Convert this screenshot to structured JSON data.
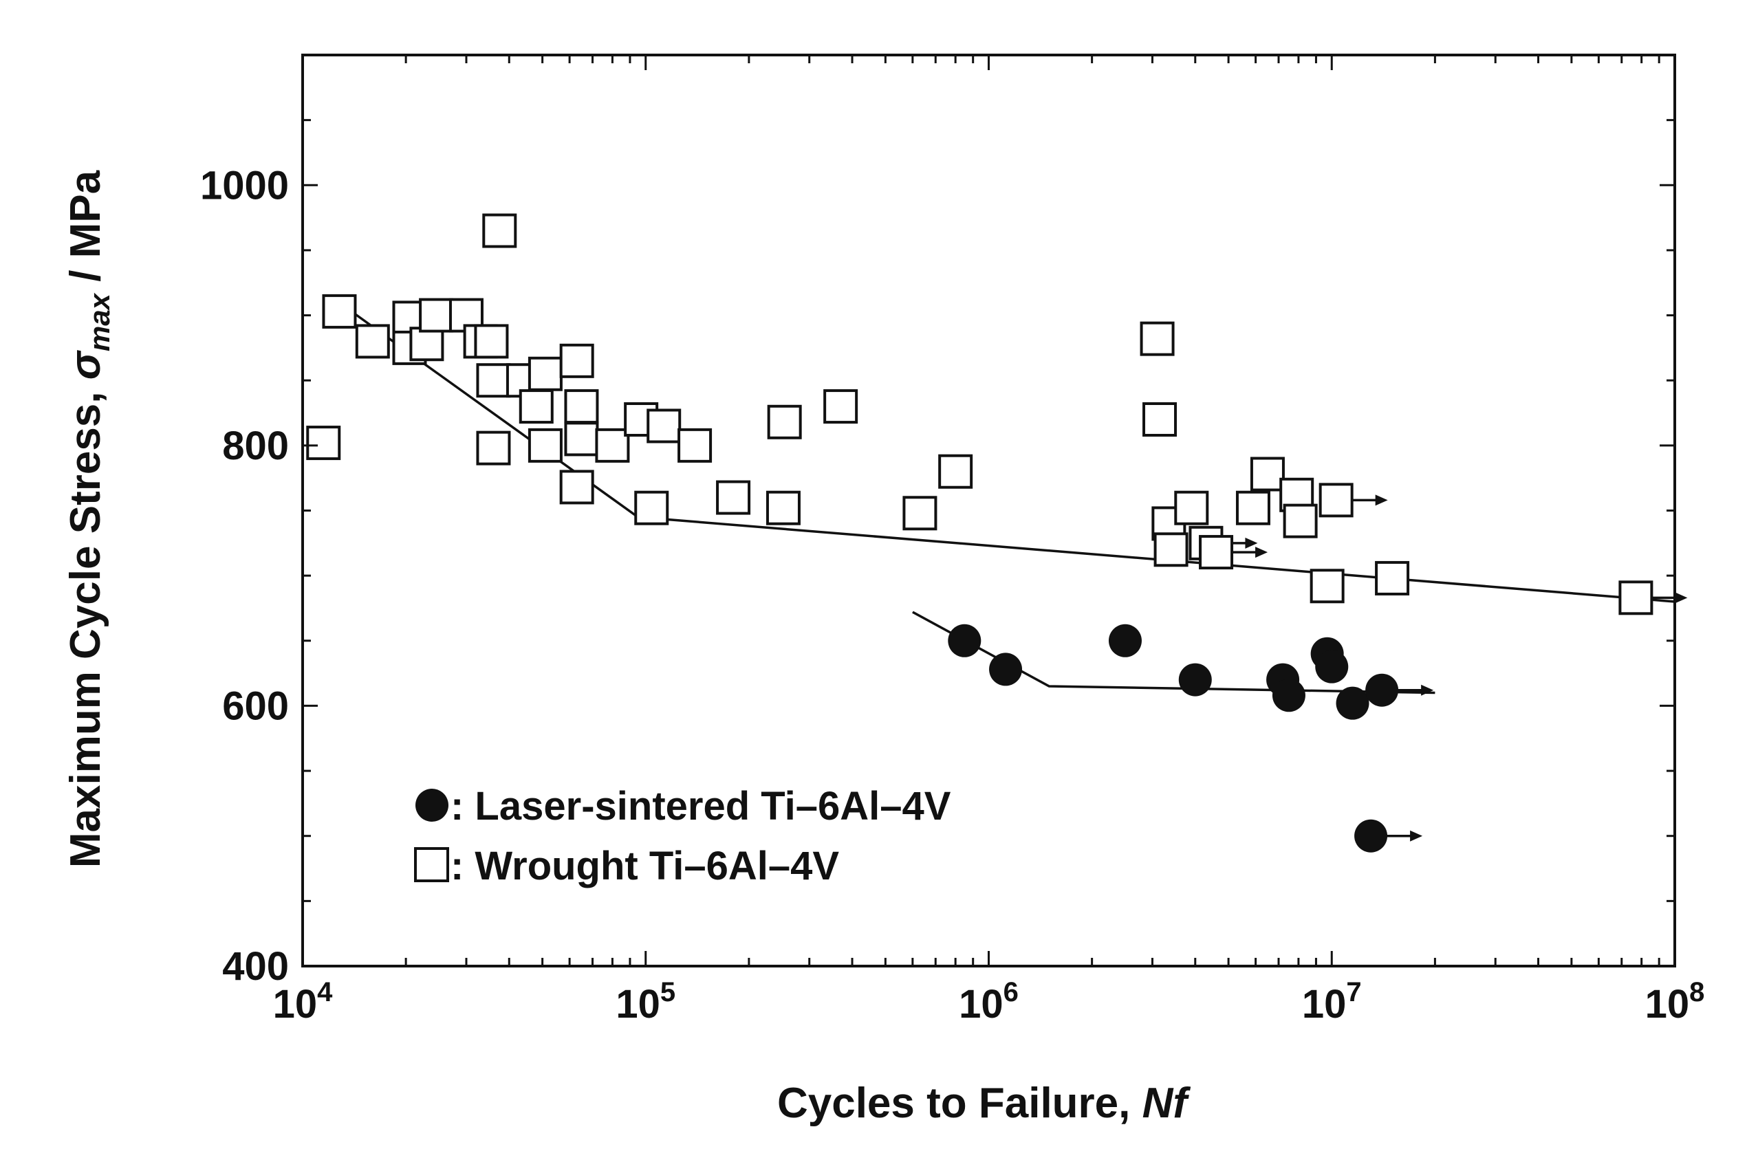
{
  "chart_data": {
    "type": "scatter",
    "title": "",
    "x_scale": "log",
    "xlim": [
      10000,
      100000000
    ],
    "ylim": [
      400,
      1100
    ],
    "xlabel": {
      "main": "Cycles to Failure, ",
      "italic": "Nf"
    },
    "ylabel": {
      "main": "Maximum Cycle Stress, ",
      "sym": "σ",
      "sub": "max",
      "tail": " / MPa"
    },
    "x_ticks": [
      {
        "value": 10000,
        "base": "10",
        "exp": "4"
      },
      {
        "value": 100000,
        "base": "10",
        "exp": "5"
      },
      {
        "value": 1000000,
        "base": "10",
        "exp": "6"
      },
      {
        "value": 10000000,
        "base": "10",
        "exp": "7"
      },
      {
        "value": 100000000,
        "base": "10",
        "exp": "8"
      }
    ],
    "y_ticks": [
      {
        "value": 400,
        "label": "400"
      },
      {
        "value": 600,
        "label": "600"
      },
      {
        "value": 800,
        "label": "800"
      },
      {
        "value": 1000,
        "label": "1000"
      }
    ],
    "y_minor_step": 50,
    "legend": {
      "position": "lower-left",
      "entries": [
        {
          "marker": "filled-circle",
          "label": ": Laser-sintered  Ti–6Al–4V"
        },
        {
          "marker": "open-square",
          "label": ": Wrought  Ti–6Al–4V"
        }
      ]
    },
    "series": [
      {
        "name": "Laser-sintered Ti–6Al–4V",
        "marker": "filled-circle",
        "color": "#111111",
        "points": [
          {
            "x": 850000,
            "y": 650
          },
          {
            "x": 1120000,
            "y": 628
          },
          {
            "x": 2500000,
            "y": 650
          },
          {
            "x": 4000000,
            "y": 620
          },
          {
            "x": 7200000,
            "y": 620
          },
          {
            "x": 7500000,
            "y": 608
          },
          {
            "x": 9700000,
            "y": 640
          },
          {
            "x": 10000000,
            "y": 630
          },
          {
            "x": 11500000,
            "y": 602
          },
          {
            "x": 14000000,
            "y": 612,
            "runout": true
          },
          {
            "x": 13000000,
            "y": 500,
            "runout": true
          }
        ],
        "trend_line": [
          {
            "x": 600000,
            "y": 672
          },
          {
            "x": 1500000,
            "y": 615
          },
          {
            "x": 20000000,
            "y": 610
          }
        ]
      },
      {
        "name": "Wrought Ti–6Al–4V",
        "marker": "open-square",
        "color": "#111111",
        "points": [
          {
            "x": 11500,
            "y": 802
          },
          {
            "x": 12800,
            "y": 903
          },
          {
            "x": 16000,
            "y": 880
          },
          {
            "x": 20500,
            "y": 898
          },
          {
            "x": 20500,
            "y": 875
          },
          {
            "x": 23000,
            "y": 878
          },
          {
            "x": 24500,
            "y": 900
          },
          {
            "x": 30000,
            "y": 900
          },
          {
            "x": 33000,
            "y": 880
          },
          {
            "x": 35500,
            "y": 880
          },
          {
            "x": 36000,
            "y": 850
          },
          {
            "x": 36000,
            "y": 798
          },
          {
            "x": 37500,
            "y": 965
          },
          {
            "x": 44000,
            "y": 850
          },
          {
            "x": 48000,
            "y": 830
          },
          {
            "x": 51000,
            "y": 855
          },
          {
            "x": 51000,
            "y": 800
          },
          {
            "x": 63000,
            "y": 865
          },
          {
            "x": 63000,
            "y": 768
          },
          {
            "x": 65000,
            "y": 830
          },
          {
            "x": 65000,
            "y": 805
          },
          {
            "x": 80000,
            "y": 800
          },
          {
            "x": 97000,
            "y": 820
          },
          {
            "x": 104000,
            "y": 752
          },
          {
            "x": 113000,
            "y": 815
          },
          {
            "x": 139000,
            "y": 800
          },
          {
            "x": 180000,
            "y": 760
          },
          {
            "x": 252000,
            "y": 752
          },
          {
            "x": 254000,
            "y": 818
          },
          {
            "x": 370000,
            "y": 830
          },
          {
            "x": 630000,
            "y": 748
          },
          {
            "x": 800000,
            "y": 780
          },
          {
            "x": 3100000,
            "y": 882
          },
          {
            "x": 3150000,
            "y": 820
          },
          {
            "x": 3350000,
            "y": 740
          },
          {
            "x": 3400000,
            "y": 720
          },
          {
            "x": 3900000,
            "y": 752
          },
          {
            "x": 4300000,
            "y": 725,
            "runout": true
          },
          {
            "x": 4600000,
            "y": 718,
            "runout": true
          },
          {
            "x": 5900000,
            "y": 752
          },
          {
            "x": 6500000,
            "y": 778
          },
          {
            "x": 7900000,
            "y": 762
          },
          {
            "x": 8100000,
            "y": 742
          },
          {
            "x": 9700000,
            "y": 692
          },
          {
            "x": 10300000,
            "y": 758,
            "runout": true
          },
          {
            "x": 15000000,
            "y": 698
          },
          {
            "x": 77000000,
            "y": 683,
            "runout": true
          }
        ],
        "trend_line": [
          {
            "x": 12000,
            "y": 915
          },
          {
            "x": 22000,
            "y": 865
          },
          {
            "x": 95000,
            "y": 745
          },
          {
            "x": 100000000,
            "y": 680
          }
        ]
      }
    ]
  }
}
